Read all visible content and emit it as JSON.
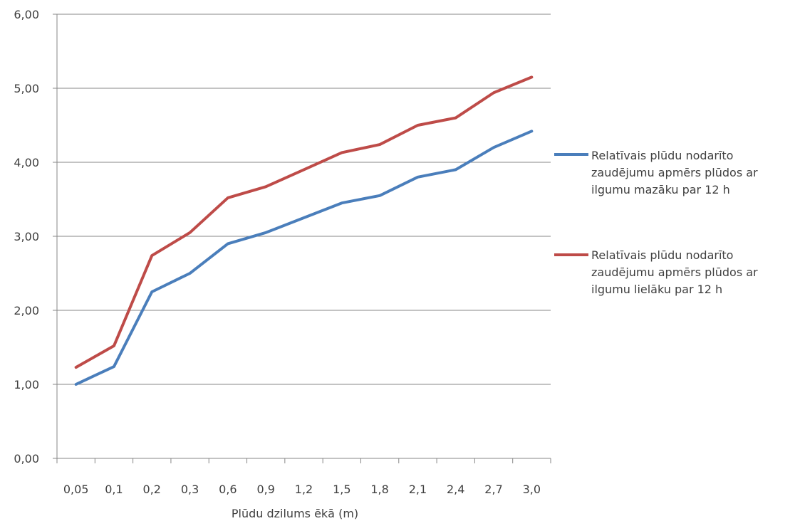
{
  "chart_data": {
    "type": "line",
    "xlabel": "Plūdu dzilums ēkā (m)",
    "ylabel": "",
    "ylim": [
      0,
      6
    ],
    "yticks": [
      "0,00",
      "1,00",
      "2,00",
      "3,00",
      "4,00",
      "5,00",
      "6,00"
    ],
    "categories": [
      "0,05",
      "0,1",
      "0,2",
      "0,3",
      "0,6",
      "0,9",
      "1,2",
      "1,5",
      "1,8",
      "2,1",
      "2,4",
      "2,7",
      "3,0"
    ],
    "grid": true,
    "legend_position": "right",
    "series": [
      {
        "name": "Relatīvais plūdu nodarīto zaudējumu apmērs plūdos ar ilgumu mazāku  par 12 h",
        "color": "#4a7ebb",
        "values": [
          1.0,
          1.24,
          2.25,
          2.5,
          2.9,
          3.05,
          3.25,
          3.45,
          3.55,
          3.8,
          3.9,
          4.2,
          4.42
        ]
      },
      {
        "name": "Relatīvais plūdu nodarīto zaudējumu apmērs plūdos ar ilgumu lielāku par 12 h",
        "color": "#be4b48",
        "values": [
          1.23,
          1.52,
          2.74,
          3.05,
          3.52,
          3.67,
          3.9,
          4.13,
          4.24,
          4.5,
          4.6,
          4.94,
          5.15
        ]
      }
    ]
  }
}
